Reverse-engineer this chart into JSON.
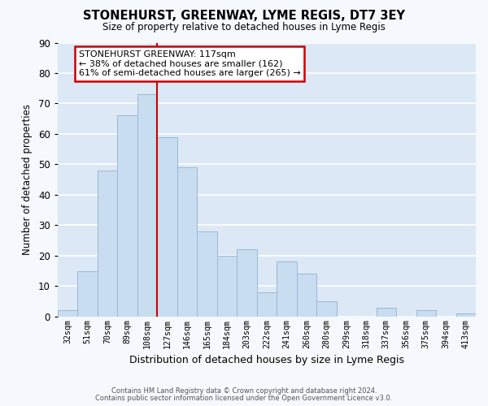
{
  "title": "STONEHURST, GREENWAY, LYME REGIS, DT7 3EY",
  "subtitle": "Size of property relative to detached houses in Lyme Regis",
  "xlabel": "Distribution of detached houses by size in Lyme Regis",
  "ylabel": "Number of detached properties",
  "categories": [
    "32sqm",
    "51sqm",
    "70sqm",
    "89sqm",
    "108sqm",
    "127sqm",
    "146sqm",
    "165sqm",
    "184sqm",
    "203sqm",
    "222sqm",
    "241sqm",
    "260sqm",
    "280sqm",
    "299sqm",
    "318sqm",
    "337sqm",
    "356sqm",
    "375sqm",
    "394sqm",
    "413sqm"
  ],
  "values": [
    2,
    15,
    48,
    66,
    73,
    59,
    49,
    28,
    20,
    22,
    8,
    18,
    14,
    5,
    0,
    0,
    3,
    0,
    2,
    0,
    1
  ],
  "bar_color": "#c9ddf0",
  "bar_edge_color": "#9ab8d4",
  "marker_label": "STONEHURST GREENWAY: 117sqm",
  "annotation_line1": "← 38% of detached houses are smaller (162)",
  "annotation_line2": "61% of semi-detached houses are larger (265) →",
  "annotation_box_color": "#ffffff",
  "annotation_box_edge": "#cc0000",
  "marker_line_color": "#cc0000",
  "ylim": [
    0,
    90
  ],
  "yticks": [
    0,
    10,
    20,
    30,
    40,
    50,
    60,
    70,
    80,
    90
  ],
  "grid_color": "#ffffff",
  "bg_color": "#dce8f5",
  "fig_bg_color": "#f5f8fc",
  "footer_line1": "Contains HM Land Registry data © Crown copyright and database right 2024.",
  "footer_line2": "Contains public sector information licensed under the Open Government Licence v3.0."
}
